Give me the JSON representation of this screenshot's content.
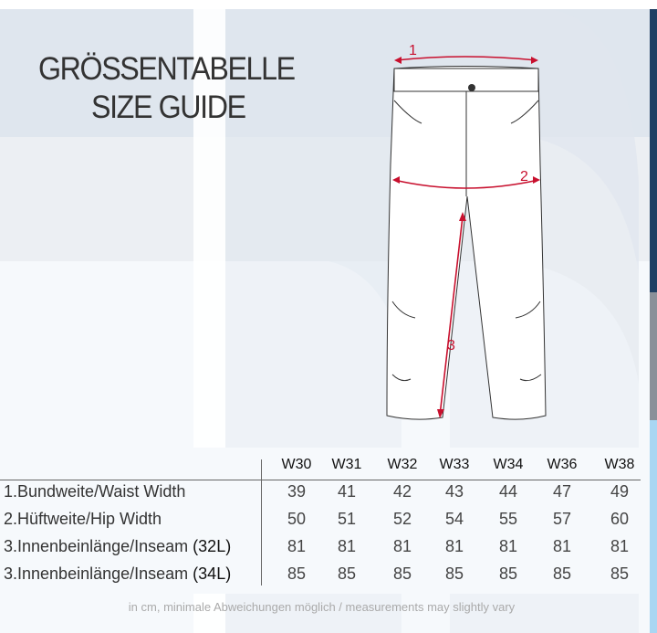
{
  "title_de": "GRÖSSENTABELLE",
  "title_en": "SIZE GUIDE",
  "diagram": {
    "markers": [
      "1",
      "2",
      "3"
    ],
    "arrow_color": "#c8102e"
  },
  "table": {
    "columns": [
      "W30",
      "W31",
      "W32",
      "W33",
      "W34",
      "W36",
      "W38"
    ],
    "rows": [
      {
        "label": "1.Bundweite/Waist Width",
        "suffix": "",
        "values": [
          "39",
          "41",
          "42",
          "43",
          "44",
          "47",
          "49"
        ]
      },
      {
        "label": "2.Hüftweite/Hip Width",
        "suffix": "",
        "values": [
          "50",
          "51",
          "52",
          "54",
          "55",
          "57",
          "60"
        ]
      },
      {
        "label": "3.Innenbeinlänge/Inseam ",
        "suffix": "(32L)",
        "values": [
          "81",
          "81",
          "81",
          "81",
          "81",
          "81",
          "81"
        ]
      },
      {
        "label": "3.Innenbeinlänge/Inseam ",
        "suffix": "(34L)",
        "values": [
          "85",
          "85",
          "85",
          "85",
          "85",
          "85",
          "85"
        ]
      }
    ]
  },
  "footnote": "in cm, minimale Abweichungen möglich / measurements may slightly vary",
  "colors": {
    "band_top": "#dfe6ee",
    "band_mid": "#eceff3",
    "stripe_navy": "#1f3f63",
    "stripe_gray": "#8a9099",
    "stripe_blue": "#a9d6f2"
  }
}
